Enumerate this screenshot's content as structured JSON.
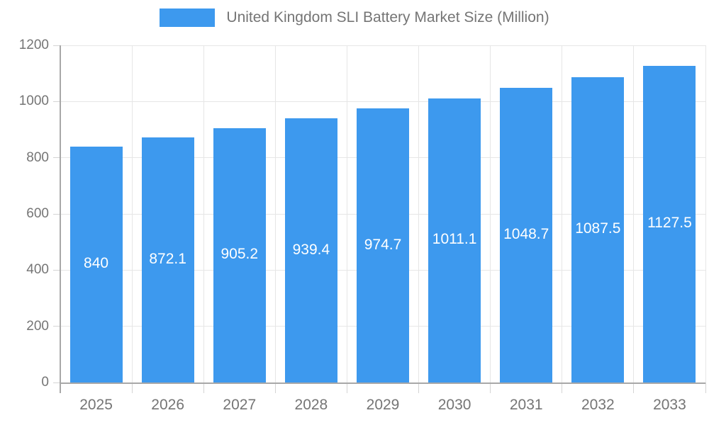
{
  "legend": {
    "label": "United Kingdom SLI Battery Market Size (Million)"
  },
  "chart_data": {
    "type": "bar",
    "title": "United Kingdom SLI Battery Market Size (Million)",
    "categories": [
      "2025",
      "2026",
      "2027",
      "2028",
      "2029",
      "2030",
      "2031",
      "2032",
      "2033"
    ],
    "values": [
      840,
      872.1,
      905.2,
      939.4,
      974.7,
      1011.1,
      1048.7,
      1087.5,
      1127.5
    ],
    "bar_labels": [
      "840",
      "872.1",
      "905.2",
      "939.4",
      "974.7",
      "1011.1",
      "1048.7",
      "1087.5",
      "1127.5"
    ],
    "xlabel": "",
    "ylabel": "",
    "ylim": [
      0,
      1200
    ],
    "yticks": [
      0,
      200,
      400,
      600,
      800,
      1000,
      1200
    ],
    "grid": true,
    "legend_position": "top",
    "colors": {
      "bar": "#3d99ee",
      "grid": "#e6e6e6",
      "axis": "#a8a8a8",
      "tick": "#d4d4d4",
      "text": "#757575",
      "value_label": "#ffffff"
    }
  }
}
